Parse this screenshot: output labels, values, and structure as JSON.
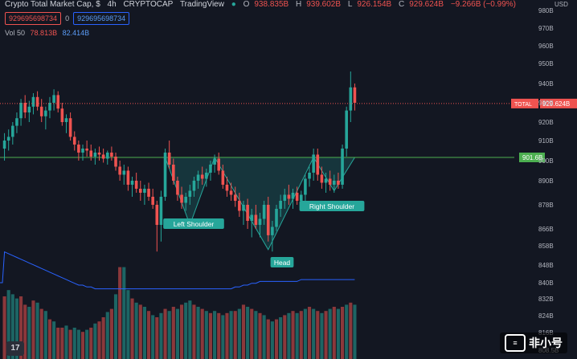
{
  "header": {
    "title": "Crypto Total Market Cap, $",
    "interval": "4h",
    "exchange": "CRYPTOCAP",
    "source": "TradingView",
    "ohlc": {
      "o_label": "O",
      "o": "938.835B",
      "h_label": "H",
      "h": "939.602B",
      "l_label": "L",
      "l": "926.154B",
      "c_label": "C",
      "c": "929.624B",
      "change": "−9.266B (−0.99%)"
    },
    "currency": "USD"
  },
  "badges": {
    "sell": "929695698734",
    "spread": "0",
    "buy": "929695698734"
  },
  "volume_legend": {
    "label": "Vol 50",
    "value": "78.813B",
    "ma": "82.414B"
  },
  "chart_data": {
    "type": "candlestick",
    "y_ticks": [
      "980B",
      "970B",
      "960B",
      "950B",
      "940B",
      "930B",
      "920B",
      "910B",
      "900B",
      "890B",
      "878B",
      "866B",
      "858B",
      "848B",
      "840B",
      "832B",
      "824B",
      "816B",
      "808.5B"
    ],
    "ylim": [
      805,
      984
    ],
    "price_line": {
      "label": "TOTAL",
      "value": 929.624,
      "value_label": "929.624B",
      "color": "#ef5350"
    },
    "neckline": {
      "value": 901.6,
      "value_label": "901.6B",
      "color": "#4caf50"
    },
    "candles": [
      [
        906,
        914,
        900,
        910
      ],
      [
        910,
        916,
        905,
        912
      ],
      [
        912,
        920,
        908,
        918
      ],
      [
        918,
        925,
        914,
        922
      ],
      [
        922,
        932,
        918,
        930
      ],
      [
        930,
        934,
        922,
        925
      ],
      [
        925,
        931,
        920,
        928
      ],
      [
        928,
        935,
        924,
        933
      ],
      [
        933,
        936,
        926,
        928
      ],
      [
        928,
        932,
        920,
        923
      ],
      [
        923,
        928,
        916,
        926
      ],
      [
        926,
        933,
        922,
        930
      ],
      [
        930,
        937,
        926,
        934
      ],
      [
        934,
        936,
        925,
        927
      ],
      [
        927,
        930,
        918,
        920
      ],
      [
        920,
        924,
        914,
        922
      ],
      [
        922,
        925,
        910,
        912
      ],
      [
        912,
        915,
        905,
        908
      ],
      [
        908,
        910,
        900,
        904
      ],
      [
        904,
        908,
        900,
        906
      ],
      [
        906,
        910,
        902,
        905
      ],
      [
        905,
        908,
        900,
        902
      ],
      [
        902,
        906,
        898,
        904
      ],
      [
        904,
        907,
        900,
        903
      ],
      [
        903,
        906,
        899,
        901
      ],
      [
        901,
        905,
        898,
        904
      ],
      [
        904,
        907,
        900,
        902
      ],
      [
        902,
        904,
        895,
        897
      ],
      [
        897,
        900,
        890,
        893
      ],
      [
        893,
        898,
        888,
        895
      ],
      [
        895,
        897,
        885,
        888
      ],
      [
        888,
        892,
        882,
        890
      ],
      [
        890,
        894,
        884,
        886
      ],
      [
        886,
        890,
        880,
        884
      ],
      [
        884,
        888,
        878,
        886
      ],
      [
        886,
        889,
        880,
        882
      ],
      [
        882,
        886,
        876,
        878
      ],
      [
        878,
        880,
        855,
        868
      ],
      [
        868,
        885,
        860,
        882
      ],
      [
        882,
        906,
        880,
        904
      ],
      [
        904,
        910,
        896,
        898
      ],
      [
        898,
        901,
        888,
        890
      ],
      [
        890,
        892,
        880,
        883
      ],
      [
        883,
        887,
        876,
        879
      ],
      [
        879,
        884,
        875,
        882
      ],
      [
        882,
        888,
        878,
        885
      ],
      [
        885,
        892,
        882,
        890
      ],
      [
        890,
        895,
        886,
        893
      ],
      [
        893,
        897,
        888,
        891
      ],
      [
        891,
        896,
        887,
        894
      ],
      [
        894,
        900,
        890,
        898
      ],
      [
        898,
        903,
        894,
        901
      ],
      [
        901,
        904,
        893,
        895
      ],
      [
        895,
        898,
        886,
        888
      ],
      [
        888,
        892,
        882,
        885
      ],
      [
        885,
        889,
        880,
        883
      ],
      [
        883,
        887,
        877,
        880
      ],
      [
        880,
        884,
        872,
        875
      ],
      [
        875,
        880,
        868,
        878
      ],
      [
        878,
        881,
        866,
        870
      ],
      [
        870,
        876,
        862,
        873
      ],
      [
        873,
        878,
        866,
        868
      ],
      [
        868,
        874,
        862,
        871
      ],
      [
        871,
        880,
        868,
        878
      ],
      [
        878,
        882,
        860,
        863
      ],
      [
        863,
        870,
        855,
        867
      ],
      [
        867,
        878,
        865,
        876
      ],
      [
        876,
        883,
        872,
        880
      ],
      [
        880,
        886,
        876,
        883
      ],
      [
        883,
        888,
        878,
        881
      ],
      [
        881,
        886,
        876,
        884
      ],
      [
        884,
        887,
        878,
        880
      ],
      [
        880,
        885,
        876,
        883
      ],
      [
        883,
        893,
        880,
        891
      ],
      [
        891,
        897,
        887,
        894
      ],
      [
        894,
        906,
        890,
        903
      ],
      [
        903,
        906,
        890,
        893
      ],
      [
        893,
        897,
        886,
        889
      ],
      [
        889,
        894,
        884,
        891
      ],
      [
        891,
        895,
        885,
        888
      ],
      [
        888,
        893,
        884,
        890
      ],
      [
        890,
        894,
        886,
        888
      ],
      [
        888,
        908,
        886,
        906
      ],
      [
        906,
        928,
        902,
        926
      ],
      [
        926,
        946,
        920,
        938
      ],
      [
        938,
        940,
        926,
        930
      ]
    ],
    "volumes": [
      [
        60,
        0
      ],
      [
        66,
        1
      ],
      [
        62,
        1
      ],
      [
        58,
        1
      ],
      [
        60,
        0
      ],
      [
        52,
        0
      ],
      [
        50,
        1
      ],
      [
        56,
        0
      ],
      [
        54,
        1
      ],
      [
        48,
        0
      ],
      [
        46,
        1
      ],
      [
        38,
        0
      ],
      [
        36,
        1
      ],
      [
        30,
        0
      ],
      [
        30,
        0
      ],
      [
        32,
        1
      ],
      [
        28,
        0
      ],
      [
        30,
        1
      ],
      [
        28,
        1
      ],
      [
        26,
        0
      ],
      [
        28,
        1
      ],
      [
        30,
        0
      ],
      [
        34,
        1
      ],
      [
        36,
        0
      ],
      [
        40,
        0
      ],
      [
        45,
        1
      ],
      [
        48,
        0
      ],
      [
        62,
        1
      ],
      [
        88,
        0
      ],
      [
        88,
        1
      ],
      [
        66,
        1
      ],
      [
        58,
        0
      ],
      [
        54,
        1
      ],
      [
        52,
        0
      ],
      [
        50,
        1
      ],
      [
        46,
        0
      ],
      [
        42,
        1
      ],
      [
        40,
        0
      ],
      [
        44,
        1
      ],
      [
        48,
        0
      ],
      [
        46,
        1
      ],
      [
        50,
        0
      ],
      [
        48,
        1
      ],
      [
        52,
        0
      ],
      [
        54,
        1
      ],
      [
        56,
        1
      ],
      [
        52,
        0
      ],
      [
        50,
        1
      ],
      [
        48,
        0
      ],
      [
        46,
        1
      ],
      [
        44,
        0
      ],
      [
        46,
        1
      ],
      [
        44,
        0
      ],
      [
        42,
        1
      ],
      [
        44,
        0
      ],
      [
        46,
        1
      ],
      [
        46,
        0
      ],
      [
        48,
        1
      ],
      [
        52,
        0
      ],
      [
        50,
        1
      ],
      [
        48,
        0
      ],
      [
        46,
        1
      ],
      [
        44,
        0
      ],
      [
        42,
        1
      ],
      [
        38,
        0
      ],
      [
        36,
        1
      ],
      [
        38,
        0
      ],
      [
        40,
        1
      ],
      [
        42,
        0
      ],
      [
        44,
        1
      ],
      [
        46,
        0
      ],
      [
        44,
        1
      ],
      [
        46,
        0
      ],
      [
        48,
        1
      ],
      [
        50,
        0
      ],
      [
        48,
        1
      ],
      [
        46,
        0
      ],
      [
        44,
        1
      ],
      [
        46,
        0
      ],
      [
        48,
        1
      ],
      [
        50,
        0
      ],
      [
        48,
        1
      ],
      [
        50,
        0
      ],
      [
        52,
        1
      ],
      [
        54,
        0
      ],
      [
        52,
        1
      ]
    ],
    "volume_ma": [
      58,
      57,
      56,
      55,
      54,
      53,
      52,
      51,
      50,
      49,
      48,
      47,
      46,
      45,
      44,
      43,
      42,
      41,
      40,
      40,
      39,
      39,
      38,
      38,
      38,
      38,
      38,
      38,
      38,
      38,
      38,
      38,
      38,
      38,
      38,
      38,
      38,
      38,
      38,
      38,
      38,
      38,
      38,
      38,
      38,
      38,
      38,
      38,
      38,
      38,
      38,
      38,
      38,
      38,
      38,
      38,
      39,
      39,
      40,
      40,
      41,
      41,
      42,
      42,
      42,
      42,
      42,
      42,
      42,
      42,
      42,
      42,
      43,
      43,
      43,
      43,
      43,
      43,
      43,
      43,
      43,
      43,
      43,
      43,
      43,
      43
    ],
    "annotations": {
      "left_shoulder": {
        "label": "Left Shoulder"
      },
      "head": {
        "label": "Head"
      },
      "right_shoulder": {
        "label": "Right Shoulder"
      }
    }
  },
  "watermark": {
    "mark": "≡",
    "text": "非小号"
  },
  "tv_logo": "17"
}
